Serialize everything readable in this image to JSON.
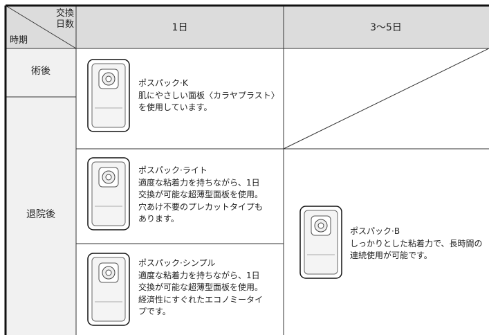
{
  "header": {
    "corner_top": [
      "交換",
      "日数"
    ],
    "corner_bottom": "時期",
    "columns": [
      "1日",
      "3〜5日"
    ]
  },
  "rows": [
    "術後",
    "退院後"
  ],
  "products": [
    {
      "name": "ポスパック·K",
      "description": [
        "肌にやさしい面板〈カラヤプラスト〉",
        "を使用しています。"
      ]
    },
    {
      "name": "ポスパック·ライト",
      "description": [
        "適度な粘着力を持ちながら、1日",
        "交換が可能な超薄型面板を使用。",
        "穴あけ不要のプレカットタイプも",
        "あります。"
      ]
    },
    {
      "name": "ポスパック·シンプル",
      "description": [
        "適度な粘着力を持ちながら、1日",
        "交換が可能な超薄型面板を使用。",
        "経済性にすぐれたエコノミータイ",
        "プです。"
      ]
    },
    {
      "name": "ポスパック·B",
      "description": [
        "しっかりとした粘着力で、長時間の",
        "連続使用が可能です。"
      ]
    }
  ]
}
